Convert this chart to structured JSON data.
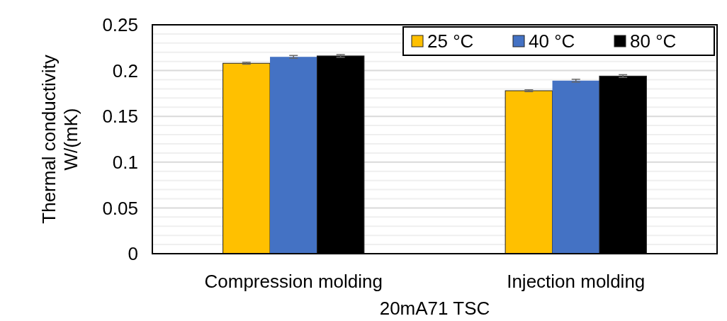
{
  "chart_data": {
    "type": "bar",
    "xlabel": "20mA71 TSC",
    "ylabel": "Thermal conductivity W/(mK)",
    "categories": [
      "Compression molding",
      "Injection molding"
    ],
    "series": [
      {
        "name": "25 °C",
        "color": "#ffc000",
        "values": [
          0.208,
          0.178
        ],
        "errors": [
          0.001,
          0.001
        ]
      },
      {
        "name": "40 °C",
        "color": "#4472c4",
        "values": [
          0.215,
          0.189
        ],
        "errors": [
          0.0015,
          0.0015
        ]
      },
      {
        "name": "80 °C",
        "color": "#000000",
        "values": [
          0.216,
          0.194
        ],
        "errors": [
          0.0015,
          0.0015
        ]
      }
    ],
    "ylim": [
      0,
      0.25
    ],
    "yticks": [
      0,
      {
        "value": 0.01,
        "label": null
      },
      {
        "value": 0.02,
        "label": null
      },
      {
        "value": 0.03,
        "label": null
      },
      {
        "value": 0.04,
        "label": null
      },
      0.05,
      {
        "value": 0.06,
        "label": null
      },
      {
        "value": 0.07,
        "label": null
      },
      {
        "value": 0.08,
        "label": null
      },
      {
        "value": 0.09,
        "label": null
      },
      0.1,
      {
        "value": 0.11,
        "label": null
      },
      {
        "value": 0.12,
        "label": null
      },
      {
        "value": 0.13,
        "label": null
      },
      {
        "value": 0.14,
        "label": null
      },
      0.15,
      {
        "value": 0.16,
        "label": null
      },
      {
        "value": 0.17,
        "label": null
      },
      {
        "value": 0.18,
        "label": null
      },
      {
        "value": 0.19,
        "label": null
      },
      0.2,
      {
        "value": 0.21,
        "label": null
      },
      {
        "value": 0.22,
        "label": null
      },
      {
        "value": 0.23,
        "label": null
      },
      {
        "value": 0.24,
        "label": null
      },
      0.25
    ],
    "grid": true,
    "legend": "top right"
  }
}
